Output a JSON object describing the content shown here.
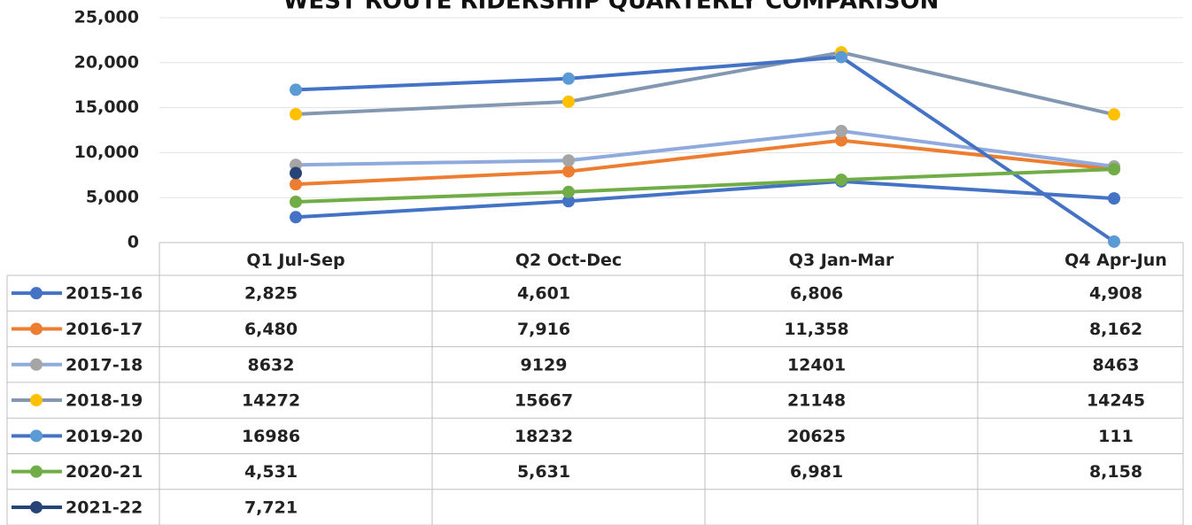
{
  "chart_data": {
    "type": "line",
    "title": "WEST ROUTE RIDERSHIP  QUARTERLY COMPARISON",
    "categories": [
      "Q1 Jul-Sep",
      "Q2 Oct-Dec",
      "Q3 Jan-Mar",
      "Q4 Apr-Jun"
    ],
    "ylim": [
      0,
      25000
    ],
    "yticks": [
      0,
      {
        "value": 5000,
        "label": "5,000"
      },
      {
        "value": 10000,
        "label": "10,000"
      },
      {
        "value": 15000,
        "label": "15,000"
      },
      {
        "value": 20000,
        "label": "20,000"
      },
      {
        "value": 25000,
        "label": "25,000"
      }
    ],
    "grid": true,
    "series": [
      {
        "name": "2015-16",
        "color": "#4472c4",
        "marker_color": "#4472c4",
        "values": [
          2825,
          4601,
          6806,
          4908
        ],
        "value_labels": [
          "2,825",
          "4,601",
          "6,806",
          "4,908"
        ]
      },
      {
        "name": "2016-17",
        "color": "#ed7d31",
        "marker_color": "#ed7d31",
        "values": [
          6480,
          7916,
          11358,
          8162
        ],
        "value_labels": [
          "6,480",
          "7,916",
          "11,358",
          "8,162"
        ]
      },
      {
        "name": "2017-18",
        "color": "#8faadc",
        "marker_color": "#a5a5a5",
        "values": [
          8632,
          9129,
          12401,
          8463
        ],
        "value_labels": [
          "8632",
          "9129",
          "12401",
          "8463"
        ]
      },
      {
        "name": "2018-19",
        "color": "#8497b0",
        "marker_color": "#ffc000",
        "values": [
          14272,
          15667,
          21148,
          14245
        ],
        "value_labels": [
          "14272",
          "15667",
          "21148",
          "14245"
        ]
      },
      {
        "name": "2019-20",
        "color": "#4472c4",
        "marker_color": "#5b9bd5",
        "values": [
          16986,
          18232,
          20625,
          111
        ],
        "value_labels": [
          "16986",
          "18232",
          "20625",
          "111"
        ]
      },
      {
        "name": "2020-21",
        "color": "#70ad47",
        "marker_color": "#70ad47",
        "values": [
          4531,
          5631,
          6981,
          8158
        ],
        "value_labels": [
          "4,531",
          "5,631",
          "6,981",
          "8,158"
        ]
      },
      {
        "name": "2021-22",
        "color": "#264478",
        "marker_color": "#264478",
        "values": [
          7721,
          null,
          null,
          null
        ],
        "value_labels": [
          "7,721",
          null,
          null,
          null
        ]
      }
    ]
  }
}
